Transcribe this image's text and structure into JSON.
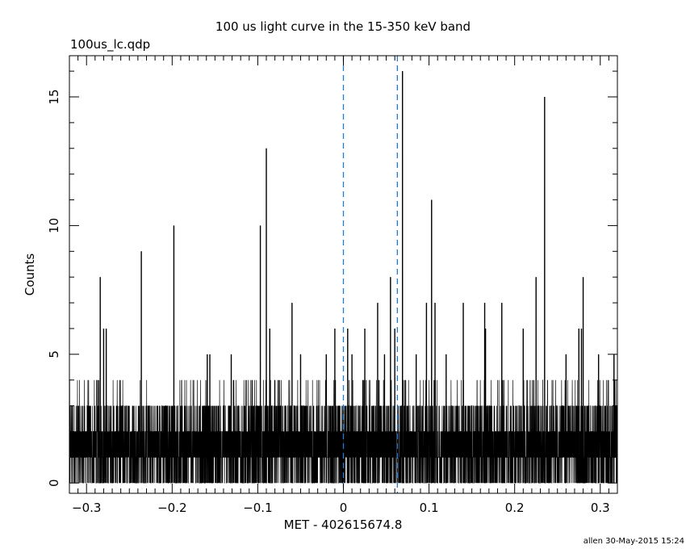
{
  "chart_data": {
    "type": "line",
    "title": "100 us light curve in the 15-350 keV band",
    "subtitle": "100us_lc.qdp",
    "xlabel": "MET - 402615674.8",
    "ylabel": "Counts",
    "footer": "allen 30-May-2015 15:24",
    "xlim": [
      -0.32,
      0.32
    ],
    "ylim": [
      -0.4,
      16.6
    ],
    "x_ticks": [
      -0.3,
      -0.2,
      -0.1,
      0,
      0.1,
      0.2,
      0.3
    ],
    "x_tick_labels": [
      "−0.3",
      "−0.2",
      "−0.1",
      "0",
      "0.1",
      "0.2",
      "0.3"
    ],
    "y_ticks": [
      0,
      5,
      10,
      15
    ],
    "y_tick_labels": [
      "0",
      "5",
      "10",
      "15"
    ],
    "grid": false,
    "line_color": "#000000",
    "markers_color": "#1e7bd6",
    "vertical_markers": [
      0.0,
      0.063
    ],
    "bin_width": 0.0001,
    "peaks": [
      {
        "x": -0.284,
        "y": 8
      },
      {
        "x": -0.28,
        "y": 6
      },
      {
        "x": -0.277,
        "y": 6
      },
      {
        "x": -0.236,
        "y": 9
      },
      {
        "x": -0.198,
        "y": 10
      },
      {
        "x": -0.159,
        "y": 5
      },
      {
        "x": -0.156,
        "y": 5
      },
      {
        "x": -0.131,
        "y": 5
      },
      {
        "x": -0.097,
        "y": 10
      },
      {
        "x": -0.09,
        "y": 13
      },
      {
        "x": -0.086,
        "y": 6
      },
      {
        "x": -0.06,
        "y": 7
      },
      {
        "x": -0.05,
        "y": 5
      },
      {
        "x": -0.02,
        "y": 5
      },
      {
        "x": -0.01,
        "y": 6
      },
      {
        "x": 0.005,
        "y": 6
      },
      {
        "x": 0.01,
        "y": 5
      },
      {
        "x": 0.025,
        "y": 6
      },
      {
        "x": 0.04,
        "y": 7
      },
      {
        "x": 0.048,
        "y": 5
      },
      {
        "x": 0.055,
        "y": 8
      },
      {
        "x": 0.06,
        "y": 6
      },
      {
        "x": 0.069,
        "y": 16
      },
      {
        "x": 0.085,
        "y": 5
      },
      {
        "x": 0.097,
        "y": 7
      },
      {
        "x": 0.103,
        "y": 11
      },
      {
        "x": 0.107,
        "y": 7
      },
      {
        "x": 0.12,
        "y": 5
      },
      {
        "x": 0.14,
        "y": 7
      },
      {
        "x": 0.165,
        "y": 7
      },
      {
        "x": 0.166,
        "y": 6
      },
      {
        "x": 0.185,
        "y": 7
      },
      {
        "x": 0.21,
        "y": 6
      },
      {
        "x": 0.225,
        "y": 8
      },
      {
        "x": 0.235,
        "y": 15
      },
      {
        "x": 0.26,
        "y": 5
      },
      {
        "x": 0.275,
        "y": 6
      },
      {
        "x": 0.278,
        "y": 6
      },
      {
        "x": 0.28,
        "y": 8
      },
      {
        "x": 0.298,
        "y": 5
      },
      {
        "x": 0.316,
        "y": 5
      }
    ]
  }
}
